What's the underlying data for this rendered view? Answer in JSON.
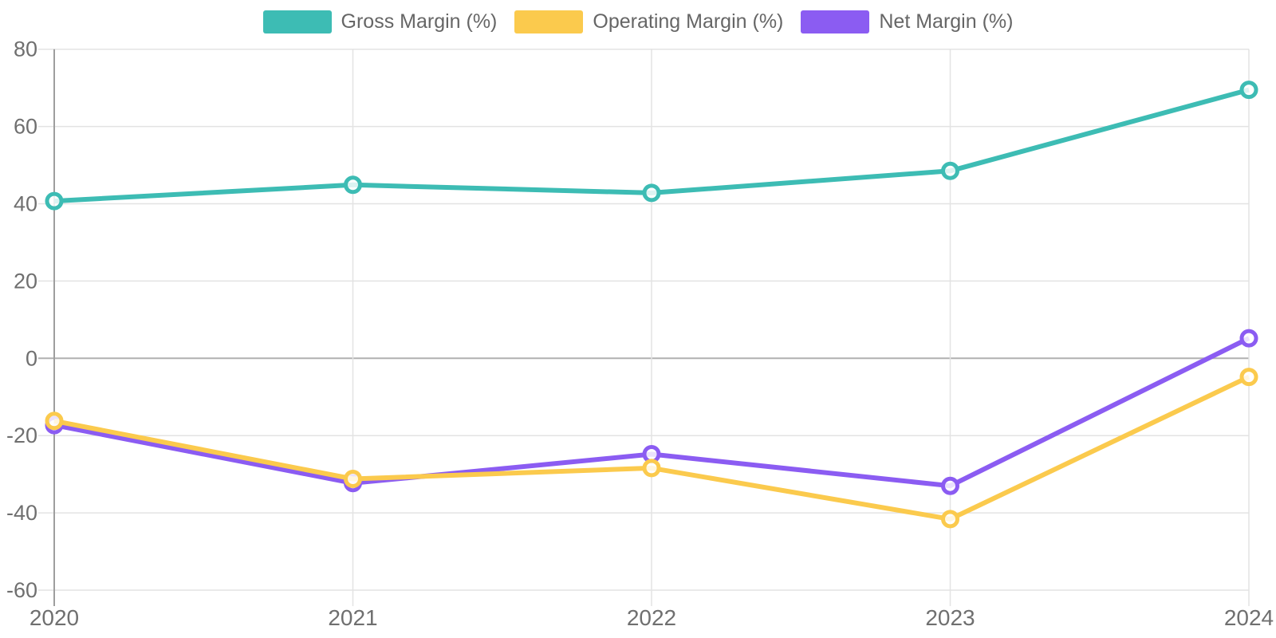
{
  "chart_data": {
    "type": "line",
    "title": "",
    "x": [
      "2020",
      "2021",
      "2022",
      "2023",
      "2024"
    ],
    "series": [
      {
        "name": "Gross Margin (%)",
        "color": "#3dbcb4",
        "values": [
          40.7,
          44.9,
          42.8,
          48.5,
          69.5
        ]
      },
      {
        "name": "Operating Margin (%)",
        "color": "#fbca4d",
        "values": [
          -16.2,
          -31.2,
          -28.4,
          -41.6,
          -4.8
        ]
      },
      {
        "name": "Net Margin (%)",
        "color": "#8b5cf2",
        "values": [
          -17.3,
          -32.3,
          -24.8,
          -33.0,
          5.2
        ]
      }
    ],
    "ylim": [
      -60,
      80
    ],
    "yticks": [
      80,
      60,
      40,
      20,
      0,
      -20,
      -40,
      -60
    ],
    "grid": true,
    "legend_position": "top-center",
    "marker": "open-circle"
  },
  "axes": {
    "y_tick_labels": [
      "80",
      "60",
      "40",
      "20",
      "0",
      "-20",
      "-40",
      "-60"
    ],
    "x_tick_labels": [
      "2020",
      "2021",
      "2022",
      "2023",
      "2024"
    ],
    "tick_text_color": "#6f6f6f",
    "grid_color": "#e3e3e3",
    "zero_line_color": "#b0b0b0",
    "axis_line_color": "#9e9e9e",
    "marker_fill": "rgba(255,255,255,0.82)"
  },
  "legend": {
    "items": [
      {
        "label": "Gross Margin (%)",
        "color": "#3dbcb4"
      },
      {
        "label": "Operating Margin (%)",
        "color": "#fbca4d"
      },
      {
        "label": "Net Margin (%)",
        "color": "#8b5cf2"
      }
    ]
  }
}
